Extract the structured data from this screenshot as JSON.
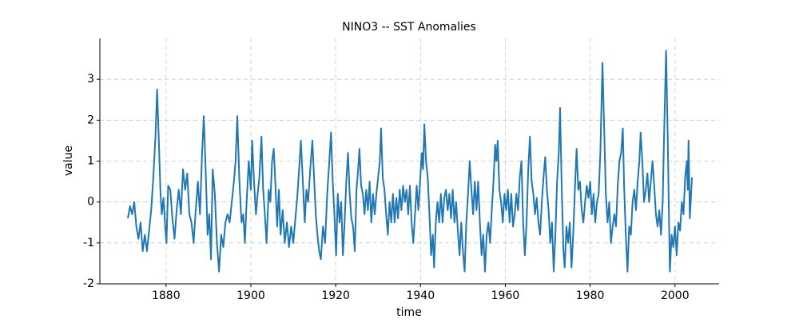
{
  "chart_data": {
    "type": "line",
    "title": "NINO3 -- SST Anomalies",
    "xlabel": "time",
    "ylabel": "value",
    "xlim": [
      1864.4,
      2010.4
    ],
    "ylim": [
      -2,
      4
    ],
    "xticks": [
      1880,
      1900,
      1920,
      1940,
      1960,
      1980,
      2000
    ],
    "yticks": [
      -2,
      -1,
      0,
      1,
      2,
      3
    ],
    "grid": true,
    "series": [
      {
        "color": "#1f77b4",
        "x": [
          1871.0,
          1871.5,
          1872.0,
          1872.5,
          1873.0,
          1873.5,
          1874.0,
          1874.5,
          1875.0,
          1875.5,
          1876.0,
          1876.5,
          1877.0,
          1877.5,
          1877.9,
          1878.3,
          1878.7,
          1879.0,
          1879.4,
          1879.8,
          1880.1,
          1880.5,
          1881.0,
          1881.5,
          1882.0,
          1882.5,
          1883.0,
          1883.5,
          1884.0,
          1884.5,
          1885.0,
          1885.5,
          1886.0,
          1886.5,
          1887.0,
          1887.5,
          1888.0,
          1888.5,
          1888.9,
          1889.4,
          1889.8,
          1890.2,
          1890.6,
          1891.0,
          1891.5,
          1892.0,
          1892.5,
          1893.0,
          1893.5,
          1894.0,
          1894.5,
          1895.0,
          1895.5,
          1896.0,
          1896.4,
          1896.8,
          1897.3,
          1897.8,
          1898.2,
          1898.6,
          1899.0,
          1899.5,
          1900.0,
          1900.3,
          1900.8,
          1901.2,
          1901.6,
          1902.0,
          1902.5,
          1902.9,
          1903.3,
          1903.7,
          1904.2,
          1904.6,
          1905.0,
          1905.4,
          1905.8,
          1906.2,
          1906.6,
          1907.0,
          1907.5,
          1908.0,
          1908.5,
          1909.0,
          1909.5,
          1910.0,
          1910.5,
          1911.0,
          1911.5,
          1911.8,
          1912.3,
          1912.7,
          1913.1,
          1913.5,
          1914.0,
          1914.5,
          1914.9,
          1915.3,
          1915.7,
          1916.1,
          1916.5,
          1917.0,
          1917.5,
          1918.0,
          1918.5,
          1918.9,
          1919.3,
          1919.7,
          1920.1,
          1920.5,
          1920.9,
          1921.3,
          1921.7,
          1922.1,
          1922.5,
          1922.9,
          1923.3,
          1923.7,
          1924.1,
          1924.5,
          1924.9,
          1925.3,
          1925.6,
          1926.0,
          1926.4,
          1926.8,
          1927.2,
          1927.6,
          1928.0,
          1928.4,
          1928.8,
          1929.2,
          1929.6,
          1930.0,
          1930.4,
          1930.7,
          1931.1,
          1931.5,
          1931.9,
          1932.3,
          1932.7,
          1933.1,
          1933.5,
          1933.9,
          1934.3,
          1934.7,
          1935.1,
          1935.5,
          1935.9,
          1936.3,
          1936.7,
          1937.1,
          1937.5,
          1937.9,
          1938.3,
          1938.7,
          1939.1,
          1939.5,
          1939.9,
          1940.3,
          1940.6,
          1940.9,
          1941.3,
          1941.7,
          1942.1,
          1942.5,
          1942.9,
          1943.2,
          1943.6,
          1944.0,
          1944.4,
          1944.8,
          1945.2,
          1945.6,
          1946.0,
          1946.4,
          1946.8,
          1947.2,
          1947.6,
          1948.0,
          1948.4,
          1948.8,
          1949.2,
          1949.6,
          1950.0,
          1950.4,
          1950.8,
          1951.2,
          1951.6,
          1952.0,
          1952.4,
          1952.8,
          1953.2,
          1953.6,
          1954.0,
          1954.4,
          1954.8,
          1955.2,
          1955.6,
          1956.0,
          1956.4,
          1956.8,
          1957.2,
          1957.6,
          1957.9,
          1958.2,
          1958.6,
          1959.0,
          1959.4,
          1959.8,
          1960.2,
          1960.6,
          1961.0,
          1961.4,
          1961.8,
          1962.2,
          1962.6,
          1963.0,
          1963.4,
          1963.8,
          1964.2,
          1964.6,
          1965.0,
          1965.4,
          1965.8,
          1966.2,
          1966.6,
          1967.0,
          1967.4,
          1967.8,
          1968.2,
          1968.6,
          1969.0,
          1969.4,
          1969.8,
          1970.2,
          1970.6,
          1971.0,
          1971.4,
          1971.8,
          1972.2,
          1972.6,
          1972.9,
          1973.3,
          1973.7,
          1974.0,
          1974.4,
          1974.8,
          1975.2,
          1975.6,
          1976.0,
          1976.4,
          1976.8,
          1977.2,
          1977.6,
          1978.0,
          1978.4,
          1978.8,
          1979.2,
          1979.6,
          1980.0,
          1980.4,
          1980.8,
          1981.2,
          1981.6,
          1982.0,
          1982.4,
          1982.9,
          1983.3,
          1983.7,
          1984.1,
          1984.5,
          1984.9,
          1985.3,
          1985.7,
          1986.1,
          1986.5,
          1986.9,
          1987.3,
          1987.7,
          1988.0,
          1988.4,
          1988.8,
          1989.2,
          1989.6,
          1990.0,
          1990.4,
          1990.8,
          1991.2,
          1991.6,
          1991.9,
          1992.3,
          1992.7,
          1993.1,
          1993.5,
          1993.9,
          1994.3,
          1994.7,
          1995.1,
          1995.5,
          1995.9,
          1996.3,
          1996.7,
          1997.1,
          1997.4,
          1997.9,
          1998.3,
          1998.6,
          1998.8,
          1999.2,
          1999.6,
          2000.0,
          2000.4,
          2000.8,
          2001.2,
          2001.6,
          2002.0,
          2002.4,
          2002.8,
          2003.0,
          2003.2,
          2003.5,
          2003.8,
          2004.0
        ],
        "values": [
          -0.4,
          -0.1,
          -0.3,
          0.0,
          -0.6,
          -0.9,
          -0.5,
          -1.2,
          -0.8,
          -1.2,
          -0.7,
          -0.2,
          0.6,
          1.6,
          2.75,
          1.5,
          0.2,
          -0.3,
          0.1,
          -0.6,
          -1.0,
          0.4,
          0.3,
          -0.4,
          -0.9,
          -0.2,
          0.3,
          -0.3,
          0.8,
          0.3,
          0.7,
          -0.3,
          -0.5,
          -1.0,
          -0.2,
          0.5,
          -0.3,
          1.2,
          2.1,
          0.6,
          -0.8,
          -0.3,
          -1.4,
          0.8,
          0.2,
          -1.0,
          -1.7,
          -0.8,
          -1.1,
          -0.5,
          -0.3,
          -0.5,
          0.0,
          0.5,
          1.0,
          2.1,
          0.5,
          -0.5,
          -0.3,
          -1.0,
          0.0,
          1.0,
          0.3,
          1.5,
          0.4,
          -0.3,
          0.2,
          0.6,
          1.6,
          0.3,
          -0.3,
          -1.0,
          0.3,
          0.0,
          1.0,
          1.3,
          0.4,
          -0.6,
          0.3,
          -0.8,
          -0.2,
          -1.0,
          -0.5,
          -1.1,
          -0.6,
          -1.0,
          -0.4,
          0.2,
          1.0,
          1.5,
          0.4,
          -0.5,
          0.3,
          0.0,
          0.8,
          1.5,
          0.6,
          -0.3,
          -0.8,
          -1.2,
          -1.4,
          -0.6,
          -1.0,
          0.2,
          1.0,
          1.7,
          0.5,
          -0.3,
          -1.3,
          0.2,
          -0.5,
          0.0,
          -1.3,
          -0.5,
          0.5,
          1.2,
          0.2,
          -0.4,
          -0.6,
          -1.2,
          0.3,
          0.8,
          1.3,
          0.4,
          0.2,
          -0.3,
          0.3,
          -0.2,
          0.5,
          -0.5,
          0.2,
          -0.3,
          0.2,
          0.6,
          1.0,
          1.8,
          0.6,
          0.3,
          -0.3,
          -0.8,
          0.0,
          -0.5,
          0.2,
          -0.5,
          0.1,
          -0.4,
          0.3,
          -0.2,
          0.4,
          0.0,
          0.3,
          -0.3,
          0.4,
          -0.5,
          -1.0,
          -0.3,
          0.4,
          -0.2,
          0.5,
          1.2,
          0.8,
          1.9,
          1.0,
          0.6,
          -0.3,
          -1.3,
          -0.8,
          -1.6,
          -0.5,
          0.0,
          -0.5,
          0.2,
          -0.5,
          0.1,
          0.3,
          -0.2,
          0.2,
          -0.4,
          0.3,
          -0.5,
          0.0,
          -0.7,
          -1.3,
          -0.5,
          -1.2,
          -1.7,
          -0.5,
          0.2,
          1.0,
          0.3,
          -0.3,
          0.5,
          -0.2,
          0.5,
          -0.5,
          -1.3,
          -0.8,
          -1.7,
          -0.8,
          -0.5,
          -1.0,
          -0.2,
          0.5,
          1.4,
          1.0,
          1.5,
          0.3,
          0.0,
          -0.5,
          0.2,
          -0.2,
          0.3,
          -0.5,
          0.2,
          -0.6,
          -0.3,
          0.2,
          -0.2,
          0.6,
          1.0,
          -0.5,
          -1.3,
          -0.5,
          0.8,
          1.6,
          0.5,
          0.2,
          -0.3,
          0.1,
          -0.5,
          -0.8,
          0.0,
          0.6,
          1.1,
          0.3,
          -0.2,
          -1.0,
          -0.5,
          -1.7,
          -0.8,
          0.5,
          1.2,
          2.3,
          0.3,
          -1.2,
          -1.6,
          -0.6,
          -1.0,
          -0.5,
          -1.6,
          -0.8,
          0.3,
          1.3,
          0.3,
          0.5,
          -0.2,
          -0.5,
          0.0,
          0.4,
          0.1,
          0.5,
          -0.3,
          0.2,
          -0.5,
          0.0,
          0.2,
          1.2,
          3.4,
          1.8,
          0.2,
          -0.5,
          0.0,
          -1.0,
          -0.6,
          -0.3,
          -0.6,
          0.4,
          1.0,
          1.2,
          1.8,
          0.4,
          -0.8,
          -1.7,
          -0.6,
          -0.8,
          0.0,
          0.3,
          -0.2,
          0.5,
          1.0,
          1.7,
          1.0,
          0.0,
          0.3,
          0.7,
          0.0,
          0.5,
          1.0,
          0.4,
          -0.3,
          -0.6,
          -0.2,
          -0.8,
          0.0,
          1.5,
          3.7,
          1.5,
          -0.5,
          -1.7,
          -0.8,
          -1.1,
          -0.6,
          -1.3,
          -0.5,
          -0.7,
          0.0,
          -0.3,
          0.6,
          1.0,
          0.3,
          1.5,
          -0.4,
          0.2,
          0.6
        ]
      }
    ]
  }
}
